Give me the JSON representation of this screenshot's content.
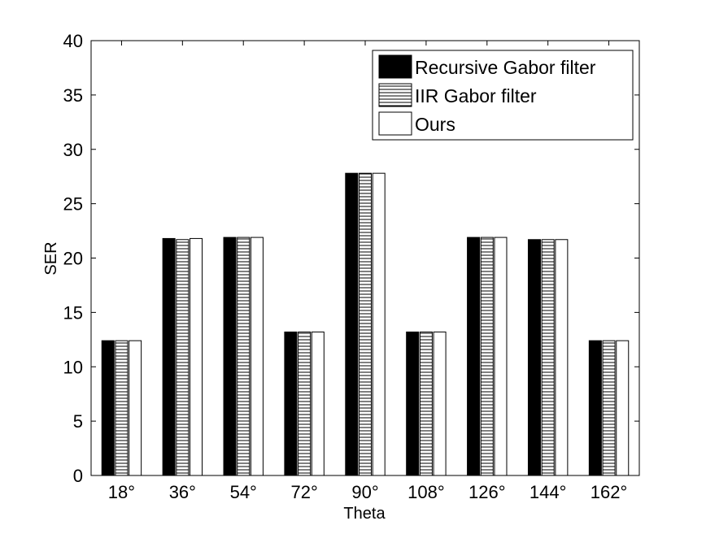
{
  "chart_data": {
    "type": "bar",
    "title": "",
    "xlabel": "Theta",
    "ylabel": "SER",
    "ylim": [
      0,
      40
    ],
    "yticks": [
      "0",
      "5",
      "10",
      "15",
      "20",
      "25",
      "30",
      "35",
      "40"
    ],
    "categories": [
      "18°",
      "36°",
      "54°",
      "72°",
      "90°",
      "108°",
      "126°",
      "144°",
      "162°"
    ],
    "series": [
      {
        "name": "Recursive Gabor filter",
        "values": [
          12.4,
          21.8,
          21.9,
          13.2,
          27.8,
          13.2,
          21.9,
          21.7,
          12.4
        ]
      },
      {
        "name": "IIR Gabor filter",
        "values": [
          12.4,
          21.7,
          21.9,
          13.2,
          27.8,
          13.2,
          21.9,
          21.7,
          12.4
        ]
      },
      {
        "name": "Ours",
        "values": [
          12.4,
          21.8,
          21.9,
          13.2,
          27.8,
          13.2,
          21.9,
          21.7,
          12.4
        ]
      }
    ],
    "series_styles": [
      "solid-black",
      "horizontal-hatch",
      "white"
    ],
    "grid": false,
    "legend_position": "top-right"
  }
}
